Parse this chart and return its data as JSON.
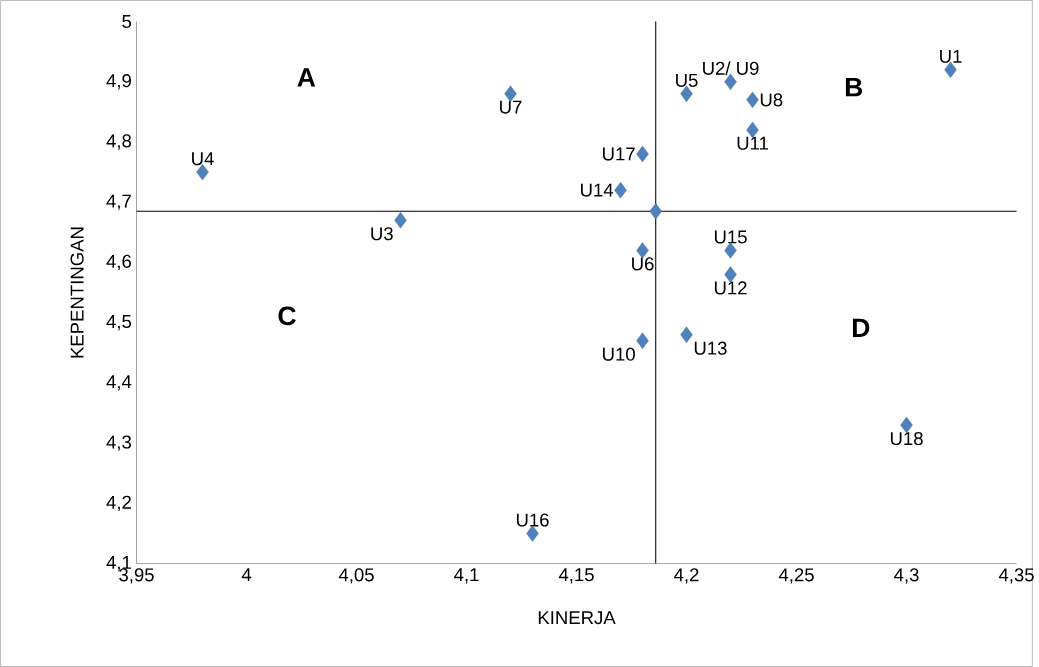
{
  "chart_data": {
    "type": "scatter",
    "xlabel": "KINERJA",
    "ylabel": "KEPENTINGAN",
    "x": [
      4.32,
      4.22,
      4.2,
      4.23,
      4.23,
      4.12,
      3.98,
      4.18,
      4.17,
      4.186,
      4.07,
      4.18,
      4.22,
      4.22,
      4.18,
      4.2,
      4.3,
      4.13
    ],
    "values": [
      4.92,
      4.9,
      4.88,
      4.87,
      4.82,
      4.88,
      4.75,
      4.78,
      4.72,
      4.685,
      4.67,
      4.62,
      4.62,
      4.58,
      4.47,
      4.48,
      4.33,
      4.15
    ],
    "color": "#4f81bd",
    "marker": "diamond",
    "grid": false,
    "xlim": [
      3.95,
      4.35
    ],
    "xticks": [
      {
        "value": 3.95,
        "label": "3,95"
      },
      4,
      {
        "value": 4.05,
        "label": "4,05"
      },
      {
        "value": 4.1,
        "label": "4,1"
      },
      {
        "value": 4.15,
        "label": "4,15"
      },
      {
        "value": 4.2,
        "label": "4,2"
      },
      {
        "value": 4.25,
        "label": "4,25"
      },
      {
        "value": 4.3,
        "label": "4,3"
      },
      {
        "value": 4.35,
        "label": "4,35"
      }
    ],
    "ylim": [
      4.1,
      5
    ],
    "yticks": [
      {
        "value": 4.1,
        "label": "4,1"
      },
      {
        "value": 4.2,
        "label": "4,2"
      },
      {
        "value": 4.3,
        "label": "4,3"
      },
      {
        "value": 4.4,
        "label": "4,4"
      },
      {
        "value": 4.5,
        "label": "4,5"
      },
      {
        "value": 4.6,
        "label": "4,6"
      },
      {
        "value": 4.7,
        "label": "4,7"
      },
      {
        "value": 4.8,
        "label": "4,8"
      },
      {
        "value": 4.9,
        "label": "4,9"
      },
      5
    ],
    "ref_lines": [
      {
        "axis": "x",
        "value": 4.186,
        "color": "#000000"
      },
      {
        "axis": "y",
        "value": 4.685,
        "color": "#000000"
      }
    ],
    "annotations": [
      {
        "text": "U1",
        "x": 4.32,
        "y": 4.92
      },
      {
        "text": "U2/ U9",
        "x": 4.22,
        "y": 4.9
      },
      {
        "text": "U5",
        "x": 4.2,
        "y": 4.88
      },
      {
        "text": "U8",
        "x": 4.23,
        "y": 4.87
      },
      {
        "text": "U11",
        "x": 4.23,
        "y": 4.82
      },
      {
        "text": "U7",
        "x": 4.12,
        "y": 4.88
      },
      {
        "text": "U4",
        "x": 3.98,
        "y": 4.75
      },
      {
        "text": "U17",
        "x": 4.18,
        "y": 4.78
      },
      {
        "text": "U14",
        "x": 4.17,
        "y": 4.72
      },
      {
        "text": "U3",
        "x": 4.07,
        "y": 4.67
      },
      {
        "text": "U6",
        "x": 4.18,
        "y": 4.62
      },
      {
        "text": "U15",
        "x": 4.22,
        "y": 4.62
      },
      {
        "text": "U12",
        "x": 4.22,
        "y": 4.58
      },
      {
        "text": "U10",
        "x": 4.18,
        "y": 4.47
      },
      {
        "text": "U13",
        "x": 4.2,
        "y": 4.48
      },
      {
        "text": "U18",
        "x": 4.3,
        "y": 4.33
      },
      {
        "text": "U16",
        "x": 4.13,
        "y": 4.15
      },
      "A",
      "B",
      "C",
      "D"
    ]
  }
}
